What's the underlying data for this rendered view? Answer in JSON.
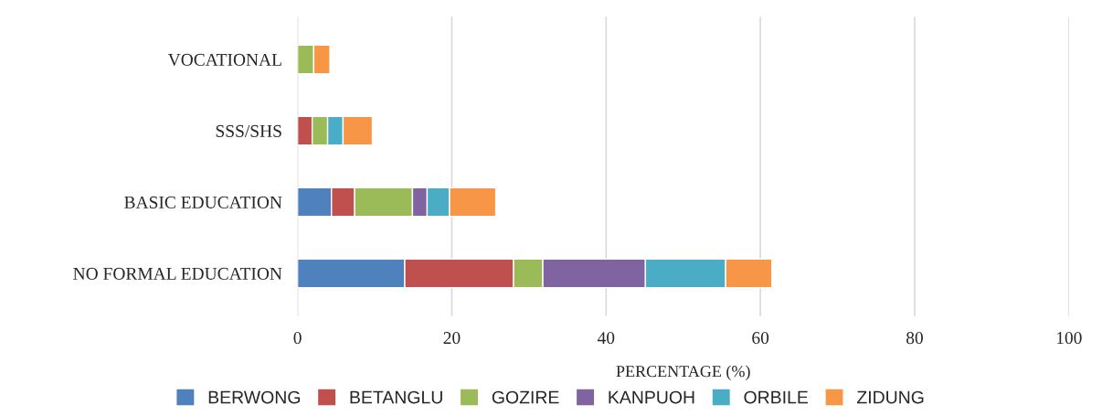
{
  "chart_data": {
    "type": "bar",
    "orientation": "horizontal",
    "stacked": true,
    "categories": [
      "VOCATIONAL",
      "SSS/SHS",
      "BASIC EDUCATION",
      "NO FORMAL EDUCATION"
    ],
    "series": [
      {
        "name": "BERWONG",
        "color": "#4f81bd",
        "values": [
          null,
          null,
          4.4,
          13.9
        ]
      },
      {
        "name": "BETANGLU",
        "color": "#c0504d",
        "values": [
          null,
          1.9,
          3.0,
          14.1
        ]
      },
      {
        "name": "GOZIRE",
        "color": "#9bbb59",
        "values": [
          2.1,
          2.0,
          7.5,
          3.8
        ]
      },
      {
        "name": "KANPUOH",
        "color": "#8064a2",
        "values": [
          null,
          null,
          1.9,
          13.3
        ]
      },
      {
        "name": "ORBILE",
        "color": "#4bacc6",
        "values": [
          null,
          2.0,
          2.9,
          10.4
        ]
      },
      {
        "name": "ZIDUNG",
        "color": "#f79646",
        "values": [
          2.1,
          3.8,
          6.0,
          6.0
        ]
      }
    ],
    "xlabel": "PERCENTAGE (%)",
    "xlim": [
      0,
      100
    ],
    "xticks": [
      0,
      20,
      40,
      60,
      80,
      100
    ],
    "grid": "x",
    "legend": "bottom"
  }
}
